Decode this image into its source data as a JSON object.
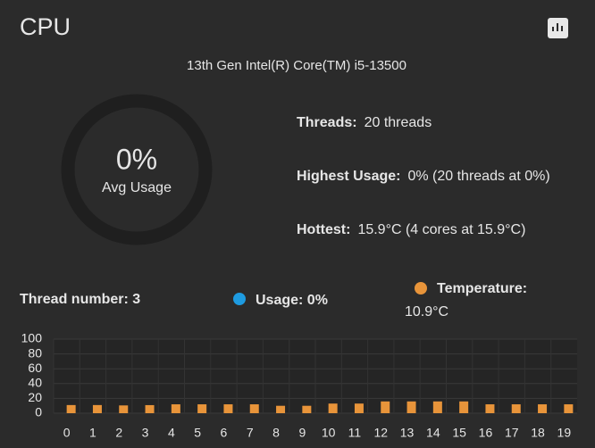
{
  "header": {
    "title": "CPU"
  },
  "subtitle": "13th Gen Intel(R) Core(TM) i5-13500",
  "gauge": {
    "value": "0%",
    "label": "Avg Usage"
  },
  "stats": [
    {
      "label": "Threads:",
      "value": "20 threads"
    },
    {
      "label": "Highest Usage:",
      "value": "0%  (20 threads at 0%)"
    },
    {
      "label": "Hottest:",
      "value": "15.9°C  (4 cores at 15.9°C)"
    }
  ],
  "tooltip": {
    "thread": "Thread number: 3",
    "usage": "Usage: 0%",
    "temperature_label": "Temperature:",
    "temperature_value": "10.9°C"
  },
  "chart_data": {
    "type": "bar",
    "categories": [
      "0",
      "1",
      "2",
      "3",
      "4",
      "5",
      "6",
      "7",
      "8",
      "9",
      "10",
      "11",
      "12",
      "13",
      "14",
      "15",
      "16",
      "17",
      "18",
      "19"
    ],
    "series": [
      {
        "color": "#1e9be0",
        "values": [
          0,
          0,
          0,
          0,
          0,
          0,
          0,
          0,
          0,
          0,
          0,
          0,
          0,
          0,
          0,
          0,
          0,
          0,
          0,
          0
        ]
      },
      {
        "color": "#e8943a",
        "values": [
          11,
          11,
          10.5,
          10.9,
          12,
          12,
          12,
          12,
          10,
          10,
          13,
          13,
          15.9,
          15.9,
          15.9,
          15.9,
          12,
          12,
          12,
          12
        ]
      }
    ],
    "ylim": [
      0,
      100
    ],
    "yticks": [
      0,
      20,
      40,
      60,
      80,
      100
    ],
    "grid": true
  }
}
